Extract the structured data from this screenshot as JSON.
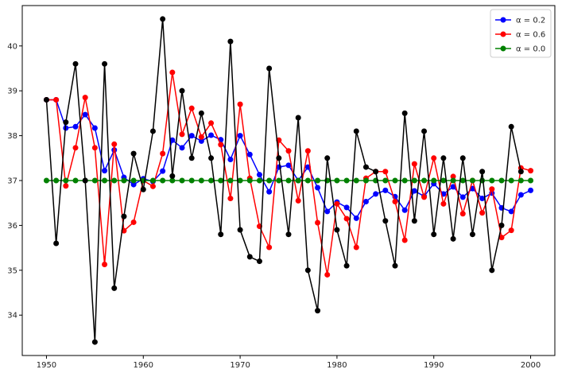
{
  "chart_data": {
    "type": "line",
    "title": "",
    "xlabel": "",
    "ylabel": "",
    "xlim": [
      1947.5,
      2002.5
    ],
    "ylim": [
      33.1,
      40.9
    ],
    "x_ticks": [
      1950,
      1960,
      1970,
      1980,
      1990,
      2000
    ],
    "y_ticks": [
      34,
      35,
      36,
      37,
      38,
      39,
      40
    ],
    "grid": false,
    "legend_position": "upper right",
    "x": [
      1950,
      1951,
      1952,
      1953,
      1954,
      1955,
      1956,
      1957,
      1958,
      1959,
      1960,
      1961,
      1962,
      1963,
      1964,
      1965,
      1966,
      1967,
      1968,
      1969,
      1970,
      1971,
      1972,
      1973,
      1974,
      1975,
      1976,
      1977,
      1978,
      1979,
      1980,
      1981,
      1982,
      1983,
      1984,
      1985,
      1986,
      1987,
      1988,
      1989,
      1990,
      1991,
      1992,
      1993,
      1994,
      1995,
      1996,
      1997,
      1998,
      1999,
      2000
    ],
    "series": [
      {
        "name": "α = 0.2",
        "color": "#0000ff",
        "values": [
          38.8,
          38.8,
          38.17,
          38.2,
          38.47,
          38.17,
          37.22,
          37.68,
          37.07,
          36.91,
          37.04,
          36.98,
          37.21,
          37.9,
          37.73,
          38.0,
          37.88,
          38.01,
          37.91,
          37.47,
          38.0,
          37.58,
          37.13,
          36.75,
          37.3,
          37.34,
          37.0,
          37.3,
          36.84,
          36.31,
          36.52,
          36.4,
          36.16,
          36.53,
          36.7,
          36.78,
          36.64,
          36.34,
          36.77,
          36.65,
          36.93,
          36.7,
          36.86,
          36.63,
          36.82,
          36.6,
          36.72,
          36.39,
          36.31,
          36.68,
          36.78
        ]
      },
      {
        "name": "α = 0.6",
        "color": "#ff0000",
        "values": [
          38.8,
          38.8,
          36.88,
          37.73,
          38.85,
          37.73,
          35.13,
          37.81,
          35.88,
          36.07,
          37.0,
          36.87,
          37.6,
          39.41,
          38.03,
          38.61,
          37.97,
          38.28,
          37.8,
          36.6,
          38.7,
          37.05,
          35.98,
          35.51,
          37.9,
          37.66,
          36.55,
          37.66,
          36.06,
          34.9,
          36.48,
          36.15,
          35.51,
          37.05,
          37.2,
          37.2,
          36.53,
          35.67,
          37.37,
          36.63,
          37.5,
          36.48,
          37.09,
          36.26,
          37.0,
          36.28,
          36.81,
          35.73,
          35.89,
          37.28,
          37.22
        ]
      },
      {
        "name": "α = 0.0",
        "color": "#008000",
        "values": [
          37.0,
          37.0,
          37.0,
          37.0,
          37.0,
          37.0,
          37.0,
          37.0,
          37.0,
          37.0,
          37.0,
          37.0,
          37.0,
          37.0,
          37.0,
          37.0,
          37.0,
          37.0,
          37.0,
          37.0,
          37.0,
          37.0,
          37.0,
          37.0,
          37.0,
          37.0,
          37.0,
          37.0,
          37.0,
          37.0,
          37.0,
          37.0,
          37.0,
          37.0,
          37.0,
          37.0,
          37.0,
          37.0,
          37.0,
          37.0,
          37.0,
          37.0,
          37.0,
          37.0,
          37.0,
          37.0,
          37.0,
          37.0,
          37.0,
          37.0,
          37.0
        ]
      },
      {
        "name": "",
        "color": "#000000",
        "values": [
          38.8,
          35.6,
          38.3,
          39.6,
          37.0,
          33.4,
          39.6,
          34.6,
          36.2,
          37.6,
          36.8,
          38.1,
          40.6,
          37.1,
          39.0,
          37.5,
          38.5,
          37.5,
          35.8,
          40.1,
          35.9,
          35.3,
          35.2,
          39.5,
          37.5,
          35.8,
          38.4,
          35.0,
          34.1,
          37.5,
          35.9,
          35.1,
          38.1,
          37.3,
          37.2,
          36.1,
          35.1,
          38.5,
          36.1,
          38.1,
          35.8,
          37.5,
          35.7,
          37.5,
          35.8,
          37.2,
          35.0,
          36.0,
          38.2,
          37.2,
          null
        ]
      }
    ],
    "legend": [
      {
        "label": "α = 0.2",
        "color": "#0000ff"
      },
      {
        "label": "α = 0.6",
        "color": "#ff0000"
      },
      {
        "label": "α = 0.0",
        "color": "#008000"
      }
    ]
  }
}
